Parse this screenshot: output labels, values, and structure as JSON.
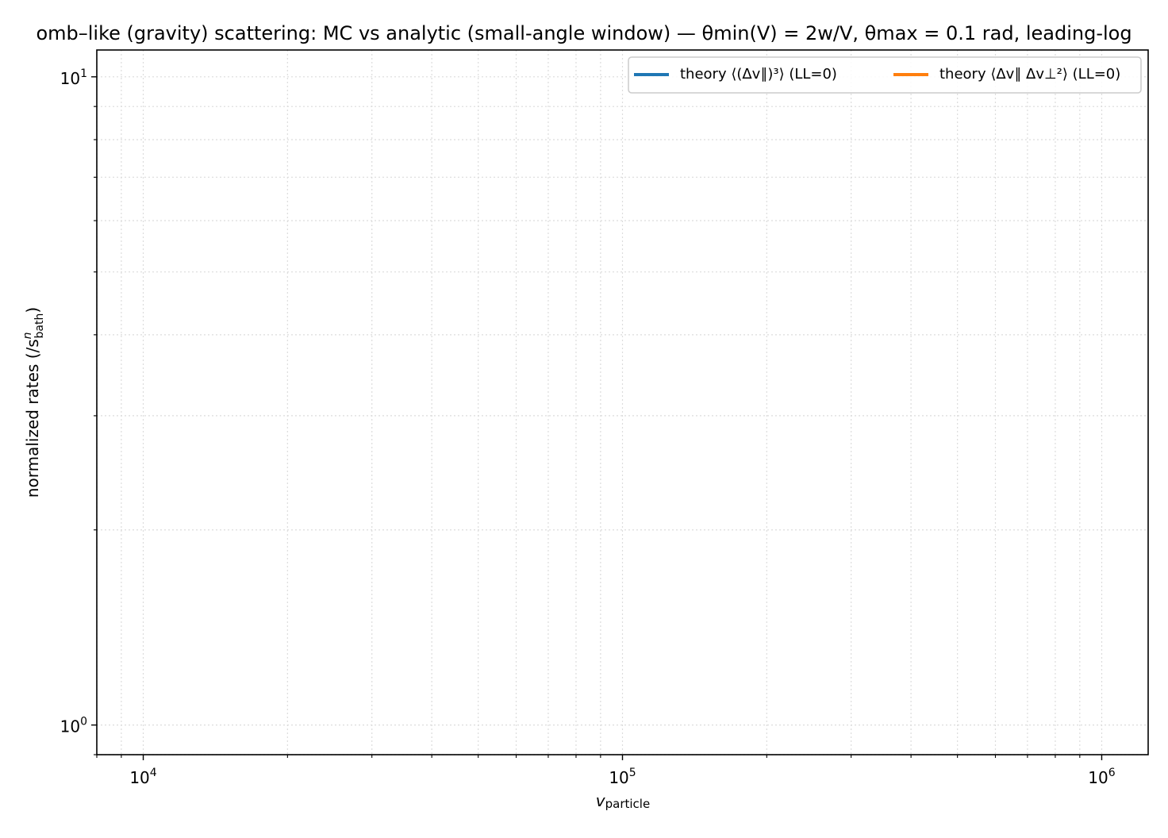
{
  "chart_data": {
    "type": "line",
    "title": "omb–like (gravity) scattering: MC vs analytic (small-angle window) — θmin(V) = 2w/V, θmax = 0.1 rad, leading-log",
    "xlabel": "v",
    "xlabel_sub": "particle",
    "ylabel": "normalized rates (/s",
    "ylabel_sup": "n",
    "ylabel_sub": "bath",
    "ylabel_close": ")",
    "xscale": "log",
    "yscale": "log",
    "xlim": [
      8000,
      1250000
    ],
    "ylim": [
      0.9,
      11.0
    ],
    "grid": true,
    "x_major_ticks": [
      {
        "value": 10000,
        "base": "10",
        "exp": "4"
      },
      {
        "value": 100000,
        "base": "10",
        "exp": "5"
      },
      {
        "value": 1000000,
        "base": "10",
        "exp": "6"
      }
    ],
    "y_major_ticks": [
      {
        "value": 1,
        "base": "10",
        "exp": "0"
      },
      {
        "value": 10,
        "base": "10",
        "exp": "1"
      }
    ],
    "legend_placement": "top-right",
    "legend_columns": 2,
    "series": [
      {
        "name": "theory  ⟨(Δv∥)³⟩ (LL=0)",
        "color": "#1f77b4",
        "x": [],
        "y": []
      },
      {
        "name": "theory  ⟨Δv∥ Δv⊥²⟩ (LL=0)",
        "color": "#ff7f0e",
        "x": [],
        "y": []
      }
    ]
  }
}
